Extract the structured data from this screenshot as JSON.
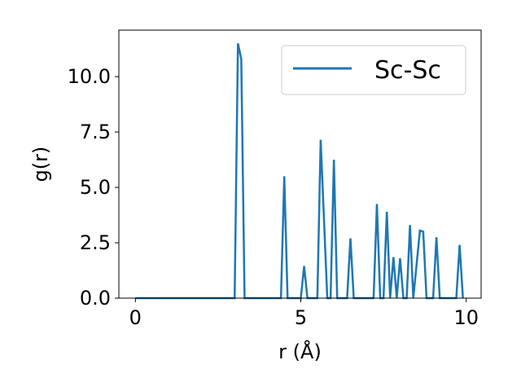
{
  "chart_data": {
    "type": "line",
    "title": "",
    "xlabel": "r (Å)",
    "ylabel": "g(r)",
    "xlim": [
      -0.5,
      10.45
    ],
    "ylim": [
      0.0,
      12.1
    ],
    "x_ticks": [
      0,
      5,
      10
    ],
    "x_tick_labels": [
      "0",
      "5",
      "10"
    ],
    "y_ticks": [
      0.0,
      2.5,
      5.0,
      7.5,
      10.0
    ],
    "y_tick_labels": [
      "0.0",
      "2.5",
      "5.0",
      "7.5",
      "10.0"
    ],
    "grid": false,
    "legend_position": "top-right",
    "colors": {
      "series": "#1f77b4",
      "axes": "#000000",
      "background": "#ffffff"
    },
    "series": [
      {
        "name": "Sc-Sc",
        "points": [
          [
            0.0,
            0.0
          ],
          [
            3.0,
            0.0
          ],
          [
            3.1,
            11.5
          ],
          [
            3.2,
            10.8
          ],
          [
            3.3,
            0.0
          ],
          [
            4.4,
            0.0
          ],
          [
            4.5,
            5.5
          ],
          [
            4.6,
            0.0
          ],
          [
            5.0,
            0.0
          ],
          [
            5.1,
            1.45
          ],
          [
            5.2,
            0.0
          ],
          [
            5.5,
            0.0
          ],
          [
            5.6,
            7.15
          ],
          [
            5.8,
            0.0
          ],
          [
            5.9,
            0.0
          ],
          [
            6.0,
            6.25
          ],
          [
            6.1,
            0.0
          ],
          [
            6.4,
            0.0
          ],
          [
            6.5,
            2.7
          ],
          [
            6.6,
            0.0
          ],
          [
            7.2,
            0.0
          ],
          [
            7.3,
            4.25
          ],
          [
            7.4,
            0.0
          ],
          [
            7.5,
            0.0
          ],
          [
            7.6,
            3.9
          ],
          [
            7.7,
            0.0
          ],
          [
            7.8,
            1.85
          ],
          [
            7.9,
            0.0
          ],
          [
            8.0,
            1.8
          ],
          [
            8.1,
            0.0
          ],
          [
            8.2,
            0.0
          ],
          [
            8.3,
            3.3
          ],
          [
            8.4,
            0.0
          ],
          [
            8.6,
            3.05
          ],
          [
            8.7,
            3.0
          ],
          [
            8.8,
            0.0
          ],
          [
            9.0,
            0.0
          ],
          [
            9.1,
            2.75
          ],
          [
            9.2,
            0.0
          ],
          [
            9.7,
            0.0
          ],
          [
            9.8,
            2.4
          ],
          [
            9.9,
            0.0
          ]
        ]
      }
    ]
  }
}
